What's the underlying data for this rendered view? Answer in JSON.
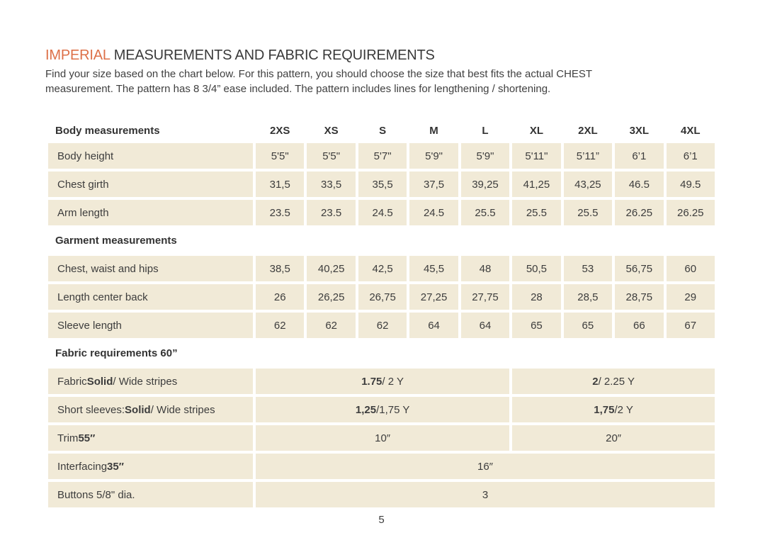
{
  "page": {
    "title": {
      "highlight": "IMPERIAL",
      "rest": "MEASUREMENTS AND FABRIC REQUIREMENTS"
    },
    "intro_lines": [
      "Find your size based on the chart below. For this pattern, you should choose the size that best fits the actual CHEST",
      "measurement. The pattern has 8 3/4” ease included. The pattern includes lines for lengthening / shortening."
    ],
    "page_number": "5"
  },
  "colors": {
    "accent_orange": "#dd7048",
    "cell_background": "#f1ead7",
    "text": "#3d3d3d",
    "page_background": "#ffffff"
  },
  "table": {
    "sizes": [
      "2XS",
      "XS",
      "S",
      "M",
      "L",
      "XL",
      "2XL",
      "3XL",
      "4XL"
    ],
    "sections": [
      {
        "title": "Body measurements",
        "title_in_header_row": true,
        "rows": [
          {
            "label": "Body height",
            "values": [
              "5'5\"",
              "5'5\"",
              "5'7\"",
              "5'9\"",
              "5'9\"",
              "5'11\"",
              "5’11”",
              "6’1",
              "6’1"
            ]
          },
          {
            "label": "Chest girth",
            "values": [
              "31,5",
              "33,5",
              "35,5",
              "37,5",
              "39,25",
              "41,25",
              "43,25",
              "46.5",
              "49.5"
            ]
          },
          {
            "label": "Arm length",
            "values": [
              "23.5",
              "23.5",
              "24.5",
              "24.5",
              "25.5",
              "25.5",
              "25.5",
              "26.25",
              "26.25"
            ]
          }
        ]
      },
      {
        "title": "Garment measurements",
        "title_in_header_row": false,
        "rows": [
          {
            "label": "Chest, waist and hips",
            "values": [
              "38,5",
              "40,25",
              "42,5",
              "45,5",
              "48",
              "50,5",
              "53",
              "56,75",
              "60"
            ]
          },
          {
            "label": "Length center back",
            "values": [
              "26",
              "26,25",
              "26,75",
              "27,25",
              "27,75",
              "28",
              "28,5",
              "28,75",
              "29"
            ]
          },
          {
            "label": "Sleeve length",
            "values": [
              "62",
              "62",
              "62",
              "64",
              "64",
              "65",
              "65",
              "66",
              "67"
            ]
          }
        ]
      },
      {
        "title": "Fabric requirements 60”",
        "title_in_header_row": false,
        "rows": [
          {
            "label_parts": [
              {
                "t": "Fabric ",
                "b": false
              },
              {
                "t": "Solid",
                "b": true
              },
              {
                "t": " / Wide stripes",
                "b": false
              }
            ],
            "cells": [
              {
                "span": 5,
                "parts": [
                  {
                    "t": "1.75",
                    "b": true
                  },
                  {
                    "t": " / 2 Y",
                    "b": false
                  }
                ]
              },
              {
                "span": 4,
                "parts": [
                  {
                    "t": "2",
                    "b": true
                  },
                  {
                    "t": " / 2.25 Y",
                    "b": false
                  }
                ]
              }
            ]
          },
          {
            "label_parts": [
              {
                "t": "Short sleeves: ",
                "b": false
              },
              {
                "t": "Solid",
                "b": true
              },
              {
                "t": " / Wide stripes",
                "b": false
              }
            ],
            "cells": [
              {
                "span": 5,
                "parts": [
                  {
                    "t": "1,25",
                    "b": true
                  },
                  {
                    "t": " /1,75 Y",
                    "b": false
                  }
                ]
              },
              {
                "span": 4,
                "parts": [
                  {
                    "t": "1,75",
                    "b": true
                  },
                  {
                    "t": " /2 Y",
                    "b": false
                  }
                ]
              }
            ]
          },
          {
            "label_parts": [
              {
                "t": "Trim ",
                "b": false
              },
              {
                "t": "55″",
                "b": true
              }
            ],
            "cells": [
              {
                "span": 5,
                "parts": [
                  {
                    "t": "10″",
                    "b": false
                  }
                ]
              },
              {
                "span": 4,
                "parts": [
                  {
                    "t": "20″",
                    "b": false
                  }
                ]
              }
            ]
          },
          {
            "label_parts": [
              {
                "t": "Interfacing ",
                "b": false
              },
              {
                "t": "35″",
                "b": true
              }
            ],
            "cells": [
              {
                "span": 9,
                "parts": [
                  {
                    "t": "16″",
                    "b": false
                  }
                ]
              }
            ]
          },
          {
            "label_parts": [
              {
                "t": "Buttons 5/8\" dia.",
                "b": false
              }
            ],
            "cells": [
              {
                "span": 9,
                "parts": [
                  {
                    "t": "3",
                    "b": false
                  }
                ]
              }
            ]
          }
        ]
      }
    ]
  }
}
